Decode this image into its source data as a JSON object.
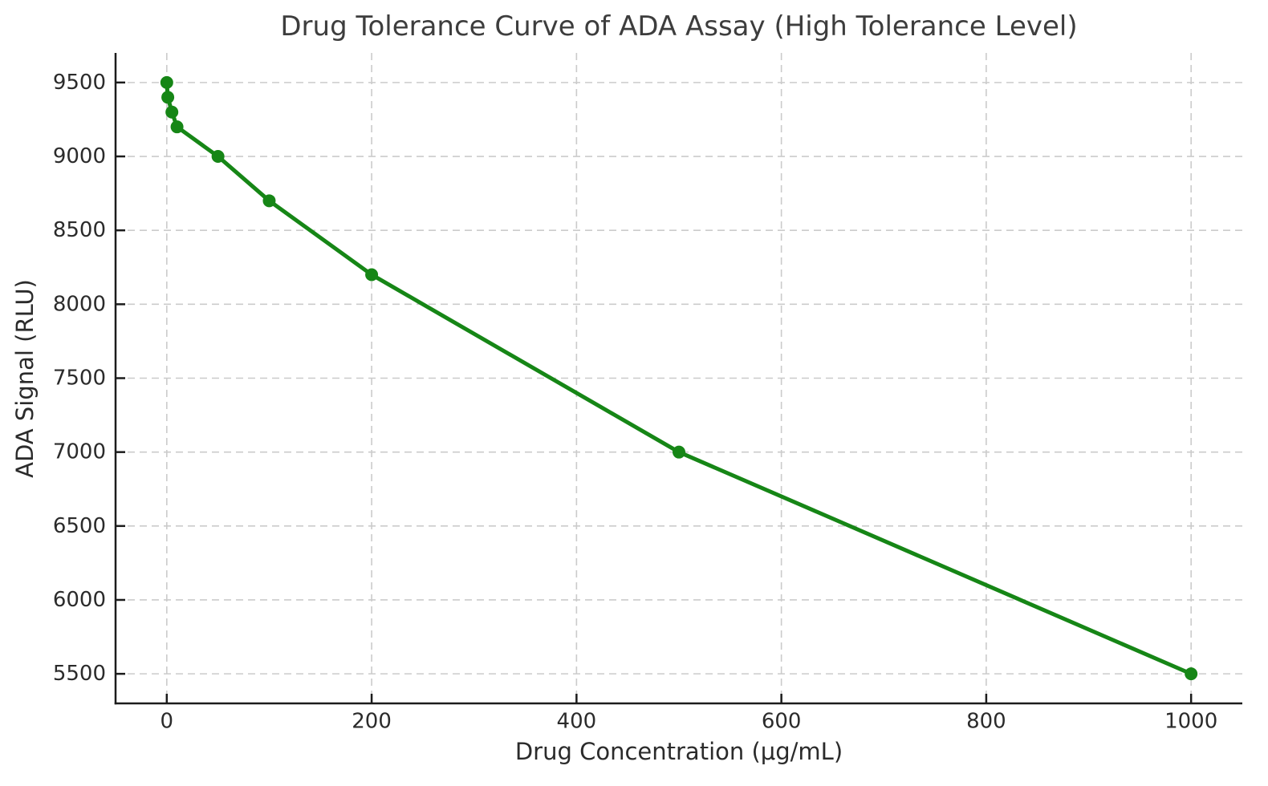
{
  "figure": {
    "title": "Drug Tolerance Curve of ADA Assay (High Tolerance Level)",
    "xlabel": "Drug Concentration (μg/mL)",
    "ylabel": "ADA Signal (RLU)"
  },
  "chart_data": {
    "type": "line",
    "title": "Drug Tolerance Curve of ADA Assay (High Tolerance Level)",
    "xlabel": "Drug Concentration (μg/mL)",
    "ylabel": "ADA Signal (RLU)",
    "x": [
      0,
      1,
      5,
      10,
      50,
      100,
      200,
      500,
      1000
    ],
    "y": [
      9500,
      9400,
      9300,
      9200,
      9000,
      8700,
      8200,
      7000,
      5500
    ],
    "xlim": [
      -50,
      1050
    ],
    "ylim": [
      5300,
      9700
    ],
    "xticks": [
      0,
      200,
      400,
      600,
      800,
      1000
    ],
    "yticks": [
      5500,
      6000,
      6500,
      7000,
      7500,
      8000,
      8500,
      9000,
      9500
    ],
    "line_color": "#168616",
    "marker": "circle",
    "marker_radius": 8,
    "line_width": 5,
    "grid": true,
    "grid_style": "dashed",
    "grid_color": "#cbcbcb",
    "axis_color": "#1c1c1c",
    "tick_direction": "in",
    "tick_length": 12,
    "text_color": "#2b2b2b",
    "title_color": "#3d3d3d",
    "background": "#ffffff",
    "legend": null
  }
}
